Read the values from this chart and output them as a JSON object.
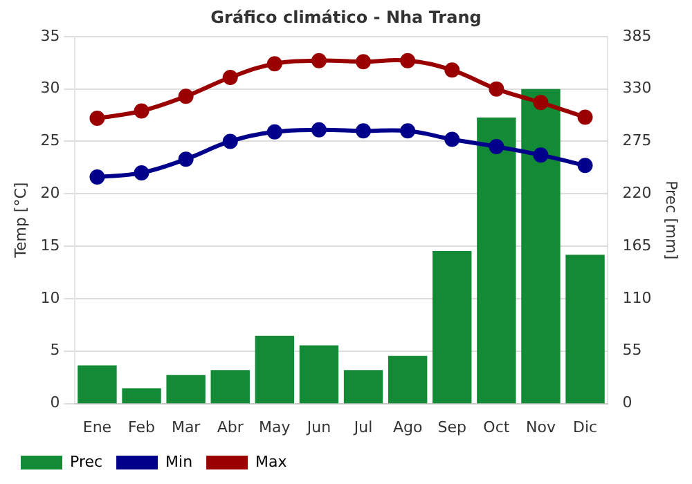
{
  "chart_data": {
    "type": "bar",
    "title": "Gráfico climático - Nha Trang",
    "ylabel": "Temp [°C]",
    "y2label": "Prec [mm]",
    "categories": [
      "Ene",
      "Feb",
      "Mar",
      "Abr",
      "May",
      "Jun",
      "Jul",
      "Ago",
      "Sep",
      "Oct",
      "Nov",
      "Dic"
    ],
    "series": [
      {
        "name": "Prec",
        "type": "bar",
        "axis": "y2",
        "color": "#138a36",
        "values": [
          40,
          16,
          30,
          35,
          71,
          61,
          35,
          50,
          160,
          300,
          330,
          156
        ]
      },
      {
        "name": "Min",
        "type": "line",
        "color": "#00008b",
        "values": [
          21.6,
          22.0,
          23.3,
          25.0,
          25.9,
          26.1,
          26.0,
          26.0,
          25.2,
          24.5,
          23.7,
          22.7
        ]
      },
      {
        "name": "Max",
        "type": "line",
        "color": "#9b0000",
        "values": [
          27.2,
          27.9,
          29.3,
          31.1,
          32.4,
          32.7,
          32.6,
          32.7,
          31.8,
          30.0,
          28.7,
          27.3
        ]
      }
    ],
    "ylim": [
      0,
      35
    ],
    "yticks": [
      0,
      5,
      10,
      15,
      20,
      25,
      30,
      35
    ],
    "y2lim": [
      0,
      385
    ],
    "y2ticks": [
      0,
      55,
      110,
      165,
      220,
      275,
      330,
      385
    ],
    "grid": "y",
    "legend": "bottom left",
    "marker": "circle",
    "line_style": "solid"
  }
}
